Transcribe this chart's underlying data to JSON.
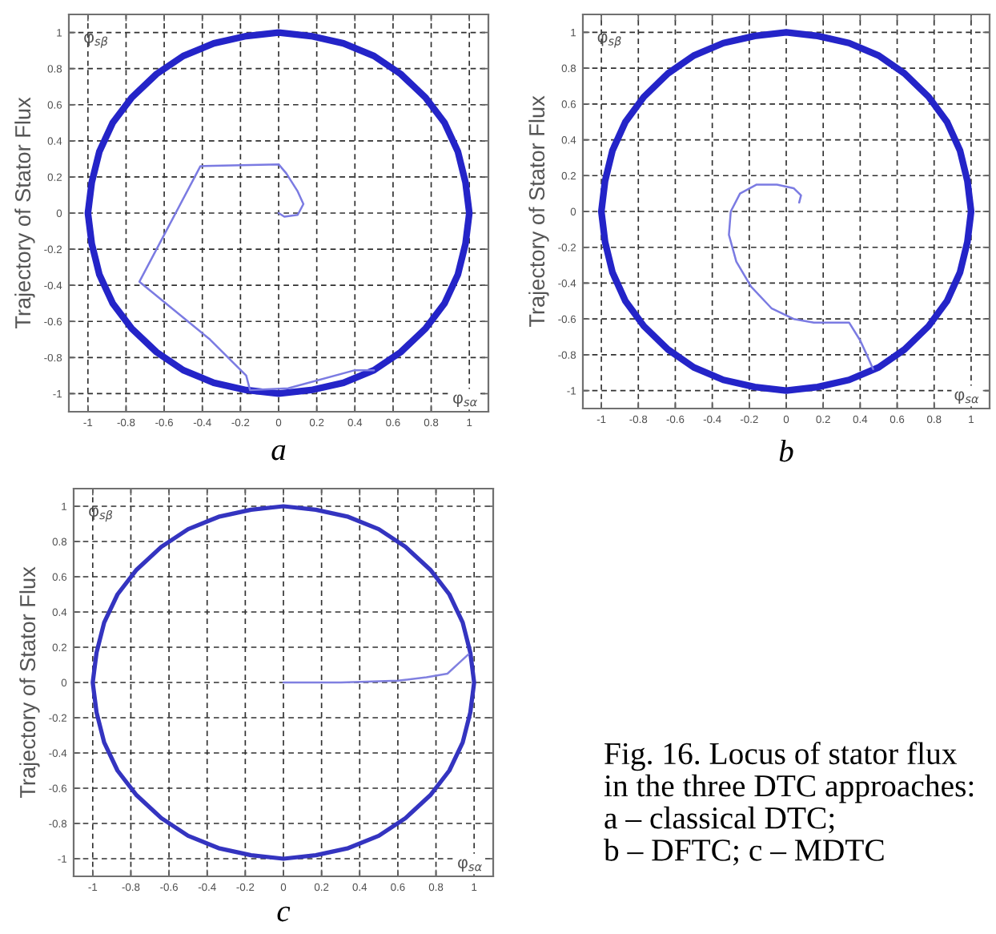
{
  "chart_data": [
    {
      "type": "line",
      "title": "a",
      "xlabel": "φ$_{sα}$",
      "ylabel": "Trajectory of Stator Flux",
      "annotations": [
        "φ$_{sβ}$"
      ],
      "xlim": [
        -1.1,
        1.1
      ],
      "ylim": [
        -1.1,
        1.1
      ],
      "xticks": [
        -1,
        -0.8,
        -0.6,
        -0.4,
        -0.2,
        0,
        0.2,
        0.4,
        0.6,
        0.8,
        1
      ],
      "yticks": [
        -1,
        -0.8,
        -0.6,
        -0.4,
        -0.2,
        0,
        0.2,
        0.4,
        0.6,
        0.8,
        1
      ],
      "grid": true,
      "marker": "none",
      "line_style": "solid",
      "series": [
        {
          "color": "#2424c8",
          "x": [
            1,
            0.98,
            0.94,
            0.87,
            0.77,
            0.64,
            0.5,
            0.34,
            0.17,
            0,
            -0.17,
            -0.34,
            -0.5,
            -0.64,
            -0.77,
            -0.87,
            -0.94,
            -0.98,
            -1,
            -0.98,
            -0.94,
            -0.87,
            -0.77,
            -0.64,
            -0.5,
            -0.34,
            -0.17,
            0,
            0.17,
            0.34,
            0.5,
            0.64,
            0.77,
            0.87,
            0.94,
            0.98,
            1,
            0.98
          ],
          "values": [
            0,
            0.17,
            0.34,
            0.5,
            0.64,
            0.77,
            0.87,
            0.94,
            0.98,
            1,
            0.98,
            0.94,
            0.87,
            0.77,
            0.64,
            0.5,
            0.34,
            0.17,
            0,
            -0.17,
            -0.34,
            -0.5,
            -0.64,
            -0.77,
            -0.87,
            -0.94,
            -0.98,
            -1,
            -0.98,
            -0.94,
            -0.87,
            -0.77,
            -0.64,
            -0.5,
            -0.34,
            -0.17,
            0,
            0.17
          ]
        },
        {
          "color": "#7b7be2",
          "x": [
            0,
            0.03,
            0.1,
            0.13,
            0.1,
            0.04,
            0,
            -0.41,
            -0.73,
            -0.36,
            -0.17,
            -0.15,
            0.05,
            0.4,
            0.5
          ],
          "values": [
            0,
            -0.02,
            -0.01,
            0.05,
            0.12,
            0.22,
            0.27,
            0.26,
            -0.38,
            -0.7,
            -0.9,
            -0.98,
            -0.97,
            -0.87,
            -0.87
          ]
        }
      ]
    },
    {
      "type": "line",
      "title": "b",
      "xlabel": "φ$_{sα}$",
      "ylabel": "Trajectory of Stator Flux",
      "annotations": [
        "φ$_{sβ}$"
      ],
      "xlim": [
        -1.1,
        1.1
      ],
      "ylim": [
        -1.1,
        1.1
      ],
      "xticks": [
        -1,
        -0.8,
        -0.6,
        -0.4,
        -0.2,
        0,
        0.2,
        0.4,
        0.6,
        0.8,
        1
      ],
      "yticks": [
        -1,
        -0.8,
        -0.6,
        -0.4,
        -0.2,
        0,
        0.2,
        0.4,
        0.6,
        0.8,
        1
      ],
      "grid": true,
      "marker": "none",
      "line_style": "solid",
      "series": [
        {
          "color": "#2424c8",
          "x": [
            1,
            0.98,
            0.94,
            0.87,
            0.77,
            0.64,
            0.5,
            0.34,
            0.17,
            0,
            -0.17,
            -0.34,
            -0.5,
            -0.64,
            -0.77,
            -0.87,
            -0.94,
            -0.98,
            -1,
            -0.98,
            -0.94,
            -0.87,
            -0.77,
            -0.64,
            -0.5,
            -0.34,
            -0.17,
            0,
            0.17,
            0.34,
            0.5,
            0.64,
            0.77,
            0.87,
            0.94,
            0.98,
            1,
            0.98
          ],
          "values": [
            0,
            0.17,
            0.34,
            0.5,
            0.64,
            0.77,
            0.87,
            0.94,
            0.98,
            1,
            0.98,
            0.94,
            0.87,
            0.77,
            0.64,
            0.5,
            0.34,
            0.17,
            0,
            -0.17,
            -0.34,
            -0.5,
            -0.64,
            -0.77,
            -0.87,
            -0.94,
            -0.98,
            -1,
            -0.98,
            -0.94,
            -0.87,
            -0.77,
            -0.64,
            -0.5,
            -0.34,
            -0.17,
            0,
            0.17
          ]
        },
        {
          "color": "#7b7be2",
          "x": [
            0.07,
            0.08,
            0.04,
            -0.05,
            -0.16,
            -0.25,
            -0.3,
            -0.31,
            -0.27,
            -0.19,
            -0.08,
            0.04,
            0.15,
            0.34,
            0.4,
            0.44,
            0.47
          ],
          "values": [
            0.05,
            0.09,
            0.13,
            0.15,
            0.15,
            0.1,
            0,
            -0.13,
            -0.28,
            -0.42,
            -0.54,
            -0.6,
            -0.62,
            -0.62,
            -0.72,
            -0.81,
            -0.88
          ]
        }
      ]
    },
    {
      "type": "line",
      "title": "c",
      "xlabel": "φ$_{sα}$",
      "ylabel": "Trajectory of Stator Flux",
      "annotations": [
        "φ$_{sβ}$",
        "Fig. 16. Locus of stator flux\nin the three DTC approaches:\na – classical DTC;\nb – DFTC; c – MDTC"
      ],
      "xlim": [
        -1.1,
        1.1
      ],
      "ylim": [
        -1.1,
        1.1
      ],
      "xticks": [
        -1,
        -0.8,
        -0.6,
        -0.4,
        -0.2,
        0,
        0.2,
        0.4,
        0.6,
        0.8,
        1
      ],
      "yticks": [
        -1,
        -0.8,
        -0.6,
        -0.4,
        -0.2,
        0,
        0.2,
        0.4,
        0.6,
        0.8,
        1
      ],
      "grid": true,
      "marker": "none",
      "line_style": "solid",
      "series": [
        {
          "color": "#3434c0",
          "x": [
            1,
            0.98,
            0.94,
            0.87,
            0.77,
            0.64,
            0.5,
            0.34,
            0.17,
            0,
            -0.17,
            -0.34,
            -0.5,
            -0.64,
            -0.77,
            -0.87,
            -0.94,
            -0.98,
            -1,
            -0.98,
            -0.94,
            -0.87,
            -0.77,
            -0.64,
            -0.5,
            -0.34,
            -0.17,
            0,
            0.17,
            0.34,
            0.5,
            0.64,
            0.77,
            0.87,
            0.94,
            0.98,
            1,
            0.98
          ],
          "values": [
            0,
            0.17,
            0.34,
            0.5,
            0.64,
            0.77,
            0.87,
            0.94,
            0.98,
            1,
            0.98,
            0.94,
            0.87,
            0.77,
            0.64,
            0.5,
            0.34,
            0.17,
            0,
            -0.17,
            -0.34,
            -0.5,
            -0.64,
            -0.77,
            -0.87,
            -0.94,
            -0.98,
            -1,
            -0.98,
            -0.94,
            -0.87,
            -0.77,
            -0.64,
            -0.5,
            -0.34,
            -0.17,
            0,
            0.17
          ]
        },
        {
          "color": "#8080e0",
          "x": [
            0,
            0.3,
            0.6,
            0.75,
            0.86,
            0.93,
            0.97
          ],
          "values": [
            0,
            0,
            0.01,
            0.03,
            0.05,
            0.12,
            0.16
          ]
        }
      ]
    }
  ]
}
